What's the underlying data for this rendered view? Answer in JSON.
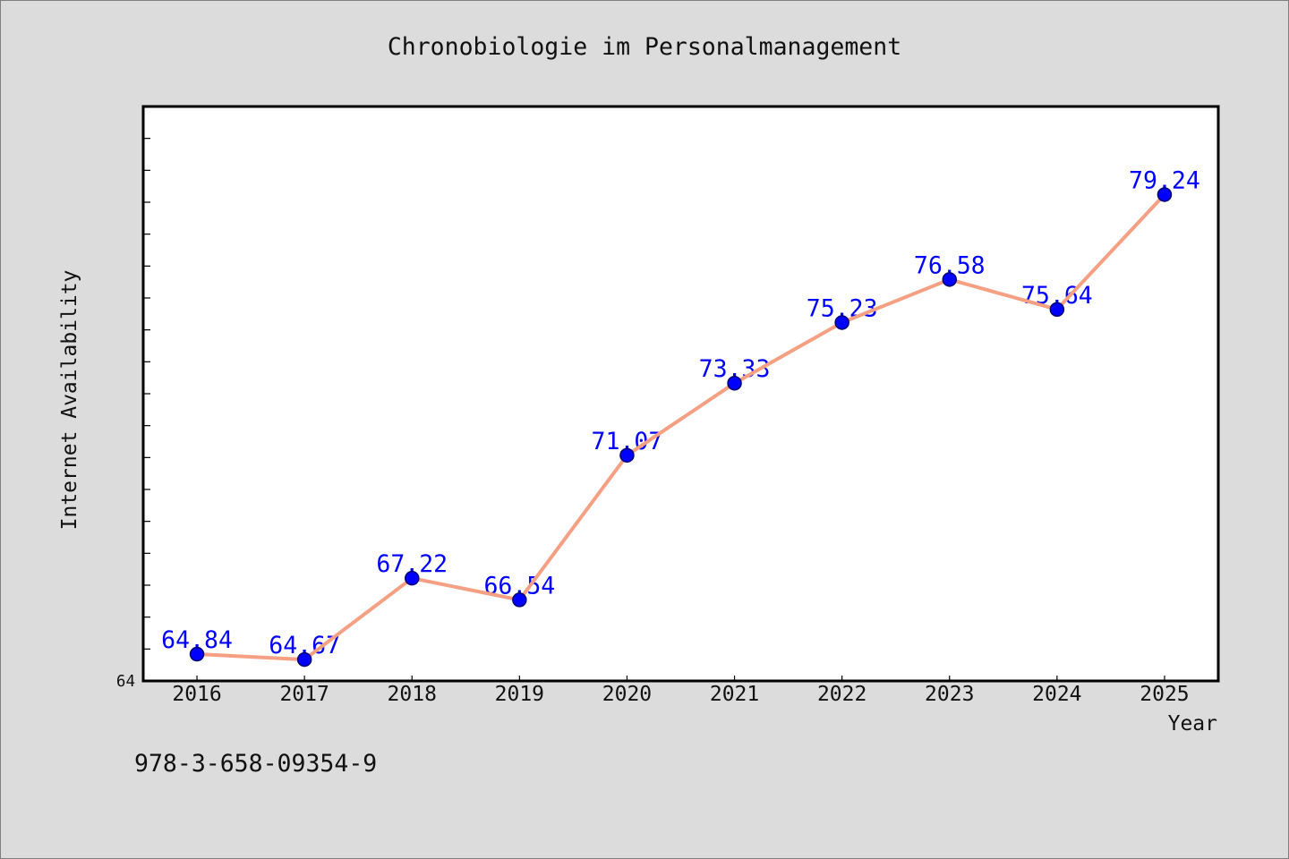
{
  "chart_data": {
    "type": "line",
    "title": "Chronobiologie im Personalmanagement",
    "xlabel": "Year",
    "ylabel": "Internet Availability",
    "categories": [
      "2016",
      "2017",
      "2018",
      "2019",
      "2020",
      "2021",
      "2022",
      "2023",
      "2024",
      "2025"
    ],
    "values": [
      64.84,
      64.67,
      67.22,
      66.54,
      71.07,
      73.33,
      75.23,
      76.58,
      75.64,
      79.24
    ],
    "ylim": [
      64,
      82
    ],
    "yticks": {
      "labeled": [
        64
      ],
      "minor_step": 1
    },
    "show_data_labels": true,
    "grid": false,
    "legend": "none",
    "colors": {
      "figure_background": "#dcdcdc",
      "plot_background": "#ffffff",
      "line": "#f6a083",
      "marker": "#0000ff",
      "marker_edge": "#00006e",
      "data_label": "#0000ff"
    }
  },
  "footer_text": "978-3-658-09354-9"
}
